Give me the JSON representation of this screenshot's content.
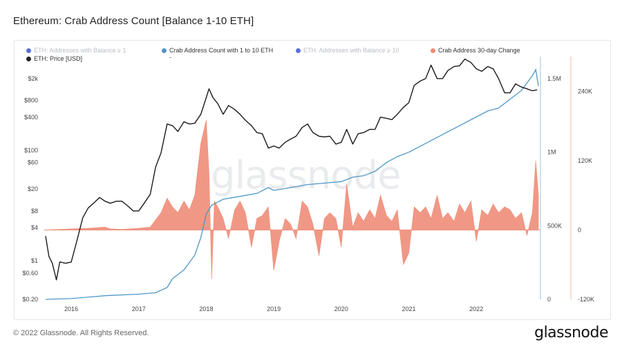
{
  "page": {
    "title": "Ethereum: Crab Address Count [Balance 1-10 ETH]",
    "footer_copyright": "© 2022 Glassnode. All Rights Reserved.",
    "brand": "glassnode",
    "watermark": "glassnode"
  },
  "legend": {
    "items": [
      {
        "label": "ETH: Addresses with Balance ≥ 1",
        "color": "#5b6fd8",
        "muted": true
      },
      {
        "label": "Crab Address Count with 1 to 10 ETH",
        "color": "#4e96c8",
        "muted": false
      },
      {
        "label": "ETH: Addresses with Balance ≥ 10",
        "color": "#5b6fd8",
        "muted": true
      },
      {
        "label": "Crab Address 30-day Change",
        "color": "#ee8d78",
        "muted": false
      },
      {
        "label": "ETH: Price [USD]",
        "color": "#222222",
        "muted": false
      }
    ],
    "price_value": "-"
  },
  "chart_data": {
    "type": "line",
    "title": "Ethereum: Crab Address Count [Balance 1-10 ETH]",
    "x_ticks": [
      "2016",
      "2017",
      "2018",
      "2019",
      "2020",
      "2021",
      "2022"
    ],
    "x_range": [
      2015.6,
      2022.95
    ],
    "axes": {
      "price_left": {
        "scale": "log",
        "ticks": [
          "$0.20",
          "$0.60",
          "$1",
          "$4",
          "$8",
          "$20",
          "$60",
          "$100",
          "$400",
          "$800",
          "$2k"
        ],
        "tick_values": [
          0.2,
          0.6,
          1,
          4,
          8,
          20,
          60,
          100,
          400,
          800,
          2000
        ],
        "range": [
          0.2,
          5000
        ]
      },
      "count_right": {
        "ticks": [
          "0",
          "500K",
          "1M",
          "1.5M"
        ],
        "tick_values": [
          0,
          500000,
          1000000,
          1500000
        ],
        "range": [
          0,
          1650000
        ]
      },
      "change_right": {
        "ticks": [
          "-120K",
          "0",
          "120K",
          "240K"
        ],
        "tick_values": [
          -120000,
          0,
          120000,
          240000
        ],
        "range": [
          -120000,
          300000
        ]
      }
    },
    "colors": {
      "price": "#1a1a1a",
      "count": "#4e96c8",
      "change": "#ee8d78"
    },
    "series": [
      {
        "name": "ETH: Price [USD]",
        "axis": "price_left",
        "points": [
          [
            2015.62,
            2.8
          ],
          [
            2015.67,
            1.2
          ],
          [
            2015.72,
            0.9
          ],
          [
            2015.78,
            0.45
          ],
          [
            2015.83,
            0.95
          ],
          [
            2015.92,
            0.9
          ],
          [
            2016.0,
            0.95
          ],
          [
            2016.08,
            2.2
          ],
          [
            2016.17,
            6
          ],
          [
            2016.25,
            9
          ],
          [
            2016.33,
            11
          ],
          [
            2016.42,
            14
          ],
          [
            2016.5,
            12
          ],
          [
            2016.58,
            11
          ],
          [
            2016.67,
            12
          ],
          [
            2016.75,
            12
          ],
          [
            2016.83,
            10
          ],
          [
            2016.92,
            8
          ],
          [
            2017.0,
            8
          ],
          [
            2017.08,
            11
          ],
          [
            2017.17,
            16
          ],
          [
            2017.25,
            50
          ],
          [
            2017.33,
            90
          ],
          [
            2017.42,
            300
          ],
          [
            2017.5,
            280
          ],
          [
            2017.58,
            220
          ],
          [
            2017.67,
            330
          ],
          [
            2017.75,
            300
          ],
          [
            2017.83,
            310
          ],
          [
            2017.92,
            450
          ],
          [
            2018.0,
            900
          ],
          [
            2018.04,
            1300
          ],
          [
            2018.1,
            900
          ],
          [
            2018.17,
            700
          ],
          [
            2018.25,
            450
          ],
          [
            2018.33,
            650
          ],
          [
            2018.42,
            550
          ],
          [
            2018.5,
            450
          ],
          [
            2018.58,
            350
          ],
          [
            2018.67,
            280
          ],
          [
            2018.75,
            210
          ],
          [
            2018.83,
            200
          ],
          [
            2018.92,
            110
          ],
          [
            2019.0,
            120
          ],
          [
            2019.08,
            110
          ],
          [
            2019.17,
            140
          ],
          [
            2019.25,
            160
          ],
          [
            2019.33,
            180
          ],
          [
            2019.42,
            260
          ],
          [
            2019.5,
            300
          ],
          [
            2019.58,
            210
          ],
          [
            2019.67,
            180
          ],
          [
            2019.75,
            175
          ],
          [
            2019.83,
            180
          ],
          [
            2019.92,
            130
          ],
          [
            2020.0,
            140
          ],
          [
            2020.08,
            240
          ],
          [
            2020.17,
            130
          ],
          [
            2020.25,
            200
          ],
          [
            2020.33,
            210
          ],
          [
            2020.42,
            240
          ],
          [
            2020.5,
            240
          ],
          [
            2020.58,
            400
          ],
          [
            2020.67,
            380
          ],
          [
            2020.75,
            360
          ],
          [
            2020.83,
            450
          ],
          [
            2020.92,
            600
          ],
          [
            2021.0,
            730
          ],
          [
            2021.08,
            1500
          ],
          [
            2021.17,
            1800
          ],
          [
            2021.25,
            2000
          ],
          [
            2021.33,
            3500
          ],
          [
            2021.42,
            2000
          ],
          [
            2021.5,
            2000
          ],
          [
            2021.58,
            2800
          ],
          [
            2021.67,
            3300
          ],
          [
            2021.75,
            3400
          ],
          [
            2021.83,
            4500
          ],
          [
            2021.92,
            3900
          ],
          [
            2022.0,
            3000
          ],
          [
            2022.08,
            2700
          ],
          [
            2022.17,
            3300
          ],
          [
            2022.25,
            3000
          ],
          [
            2022.33,
            2000
          ],
          [
            2022.42,
            1100
          ],
          [
            2022.5,
            1100
          ],
          [
            2022.58,
            1600
          ],
          [
            2022.67,
            1400
          ],
          [
            2022.75,
            1300
          ],
          [
            2022.83,
            1200
          ],
          [
            2022.9,
            1250
          ]
        ]
      },
      {
        "name": "Crab Address Count with 1 to 10 ETH",
        "axis": "count_right",
        "points": [
          [
            2015.62,
            0
          ],
          [
            2016.0,
            5000
          ],
          [
            2016.5,
            25000
          ],
          [
            2017.0,
            35000
          ],
          [
            2017.25,
            45000
          ],
          [
            2017.42,
            80000
          ],
          [
            2017.5,
            140000
          ],
          [
            2017.67,
            200000
          ],
          [
            2017.83,
            300000
          ],
          [
            2017.92,
            420000
          ],
          [
            2018.0,
            580000
          ],
          [
            2018.08,
            640000
          ],
          [
            2018.25,
            680000
          ],
          [
            2018.5,
            700000
          ],
          [
            2018.75,
            720000
          ],
          [
            2018.92,
            760000
          ],
          [
            2019.0,
            740000
          ],
          [
            2019.25,
            760000
          ],
          [
            2019.5,
            780000
          ],
          [
            2019.75,
            790000
          ],
          [
            2020.0,
            800000
          ],
          [
            2020.17,
            830000
          ],
          [
            2020.33,
            840000
          ],
          [
            2020.5,
            870000
          ],
          [
            2020.67,
            930000
          ],
          [
            2020.83,
            970000
          ],
          [
            2021.0,
            1000000
          ],
          [
            2021.25,
            1060000
          ],
          [
            2021.5,
            1120000
          ],
          [
            2021.75,
            1180000
          ],
          [
            2022.0,
            1240000
          ],
          [
            2022.17,
            1280000
          ],
          [
            2022.33,
            1300000
          ],
          [
            2022.5,
            1360000
          ],
          [
            2022.67,
            1420000
          ],
          [
            2022.83,
            1520000
          ],
          [
            2022.88,
            1560000
          ],
          [
            2022.92,
            1450000
          ]
        ]
      },
      {
        "name": "Crab Address 30-day Change",
        "axis": "change_right",
        "type": "area",
        "points": [
          [
            2015.62,
            0
          ],
          [
            2016.0,
            2000
          ],
          [
            2016.25,
            3000
          ],
          [
            2016.5,
            5000
          ],
          [
            2016.58,
            2000
          ],
          [
            2016.75,
            1000
          ],
          [
            2017.0,
            3000
          ],
          [
            2017.17,
            5000
          ],
          [
            2017.33,
            30000
          ],
          [
            2017.42,
            55000
          ],
          [
            2017.5,
            40000
          ],
          [
            2017.58,
            30000
          ],
          [
            2017.67,
            50000
          ],
          [
            2017.75,
            35000
          ],
          [
            2017.83,
            60000
          ],
          [
            2017.92,
            150000
          ],
          [
            2018.0,
            190000
          ],
          [
            2018.04,
            100000
          ],
          [
            2018.08,
            -85000
          ],
          [
            2018.12,
            50000
          ],
          [
            2018.17,
            40000
          ],
          [
            2018.25,
            20000
          ],
          [
            2018.33,
            -15000
          ],
          [
            2018.42,
            35000
          ],
          [
            2018.5,
            50000
          ],
          [
            2018.58,
            30000
          ],
          [
            2018.67,
            -30000
          ],
          [
            2018.75,
            20000
          ],
          [
            2018.83,
            25000
          ],
          [
            2018.92,
            40000
          ],
          [
            2019.0,
            -70000
          ],
          [
            2019.08,
            -20000
          ],
          [
            2019.17,
            20000
          ],
          [
            2019.25,
            10000
          ],
          [
            2019.33,
            -15000
          ],
          [
            2019.42,
            50000
          ],
          [
            2019.5,
            40000
          ],
          [
            2019.58,
            10000
          ],
          [
            2019.67,
            -45000
          ],
          [
            2019.75,
            20000
          ],
          [
            2019.83,
            30000
          ],
          [
            2019.92,
            20000
          ],
          [
            2020.0,
            -30000
          ],
          [
            2020.08,
            80000
          ],
          [
            2020.17,
            5000
          ],
          [
            2020.25,
            30000
          ],
          [
            2020.33,
            15000
          ],
          [
            2020.42,
            35000
          ],
          [
            2020.5,
            20000
          ],
          [
            2020.58,
            60000
          ],
          [
            2020.67,
            25000
          ],
          [
            2020.75,
            15000
          ],
          [
            2020.83,
            35000
          ],
          [
            2020.92,
            -60000
          ],
          [
            2021.0,
            -40000
          ],
          [
            2021.08,
            40000
          ],
          [
            2021.17,
            30000
          ],
          [
            2021.25,
            40000
          ],
          [
            2021.33,
            20000
          ],
          [
            2021.42,
            60000
          ],
          [
            2021.5,
            20000
          ],
          [
            2021.58,
            30000
          ],
          [
            2021.67,
            15000
          ],
          [
            2021.75,
            45000
          ],
          [
            2021.83,
            30000
          ],
          [
            2021.92,
            50000
          ],
          [
            2022.0,
            -20000
          ],
          [
            2022.08,
            35000
          ],
          [
            2022.17,
            25000
          ],
          [
            2022.25,
            45000
          ],
          [
            2022.33,
            30000
          ],
          [
            2022.42,
            40000
          ],
          [
            2022.5,
            35000
          ],
          [
            2022.58,
            20000
          ],
          [
            2022.67,
            30000
          ],
          [
            2022.75,
            -10000
          ],
          [
            2022.83,
            30000
          ],
          [
            2022.88,
            120000
          ],
          [
            2022.92,
            60000
          ]
        ]
      }
    ]
  }
}
